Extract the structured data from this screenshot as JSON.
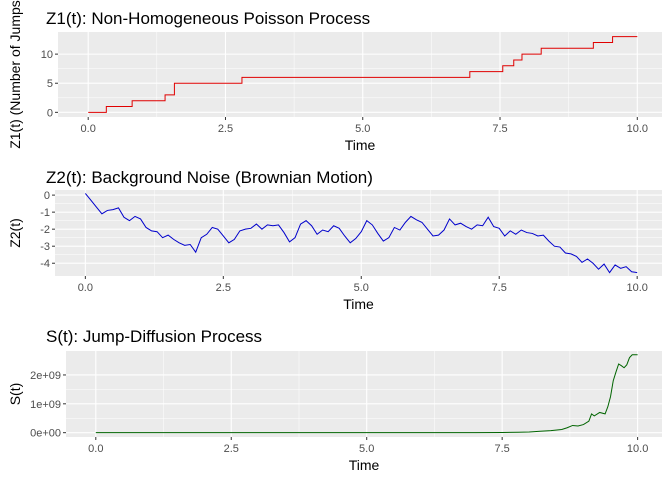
{
  "chart_data": [
    {
      "type": "line",
      "step": true,
      "title": "Z1(t): Non-Homogeneous Poisson Process",
      "xlabel": "Time",
      "ylabel": "Z1(t) (Number of Jumps",
      "xlim": [
        -0.55,
        10.45
      ],
      "ylim": [
        -0.8,
        13.8
      ],
      "x_ticks": [
        0,
        2.5,
        5,
        7.5,
        10
      ],
      "x_tick_labels": [
        "0.0",
        "2.5",
        "5.0",
        "7.5",
        "10.0"
      ],
      "y_ticks": [
        0,
        5,
        10
      ],
      "y_tick_labels": [
        "0",
        "5",
        "10"
      ],
      "grid": true,
      "color": "#e00000",
      "series": [
        {
          "x": [
            0,
            0.33,
            0.8,
            1.4,
            1.57,
            2.8,
            6.95,
            7.55,
            7.75,
            7.9,
            8.25,
            8.7,
            9.2,
            9.55,
            10.0
          ],
          "values": [
            0,
            1,
            2,
            3,
            5,
            6,
            7,
            8,
            9,
            10,
            11,
            11,
            12,
            13,
            13
          ]
        }
      ]
    },
    {
      "type": "line",
      "title": "Z2(t): Background Noise (Brownian Motion)",
      "xlabel": "Time",
      "ylabel": "Z2(t)",
      "xlim": [
        -0.55,
        10.45
      ],
      "ylim": [
        -4.75,
        0.3
      ],
      "x_ticks": [
        0,
        2.5,
        5,
        7.5,
        10
      ],
      "x_tick_labels": [
        "0.0",
        "2.5",
        "5.0",
        "7.5",
        "10.0"
      ],
      "y_ticks": [
        0,
        -1,
        -2,
        -3,
        -4
      ],
      "y_tick_labels": [
        "0",
        "-1",
        "-2",
        "-3",
        "-4"
      ],
      "grid": true,
      "color": "#0000cc",
      "series": [
        {
          "x": [
            0,
            0.1,
            0.2,
            0.3,
            0.4,
            0.5,
            0.6,
            0.7,
            0.8,
            0.9,
            1.0,
            1.1,
            1.2,
            1.3,
            1.4,
            1.5,
            1.6,
            1.7,
            1.8,
            1.9,
            2.0,
            2.1,
            2.2,
            2.3,
            2.4,
            2.5,
            2.6,
            2.7,
            2.8,
            2.9,
            3.0,
            3.1,
            3.2,
            3.3,
            3.4,
            3.5,
            3.6,
            3.7,
            3.8,
            3.9,
            4.0,
            4.1,
            4.2,
            4.3,
            4.4,
            4.5,
            4.6,
            4.7,
            4.8,
            4.9,
            5.0,
            5.1,
            5.2,
            5.3,
            5.4,
            5.5,
            5.6,
            5.7,
            5.8,
            5.9,
            6.0,
            6.1,
            6.2,
            6.3,
            6.4,
            6.5,
            6.6,
            6.7,
            6.8,
            6.9,
            7.0,
            7.1,
            7.2,
            7.3,
            7.4,
            7.5,
            7.6,
            7.7,
            7.8,
            7.9,
            8.0,
            8.1,
            8.2,
            8.3,
            8.4,
            8.5,
            8.6,
            8.7,
            8.8,
            8.9,
            9.0,
            9.1,
            9.2,
            9.3,
            9.4,
            9.5,
            9.6,
            9.7,
            9.8,
            9.9,
            10.0
          ],
          "values": [
            0.1,
            -0.3,
            -0.7,
            -1.1,
            -0.9,
            -0.85,
            -0.75,
            -1.3,
            -1.5,
            -1.25,
            -1.4,
            -1.9,
            -2.1,
            -2.15,
            -2.5,
            -2.35,
            -2.6,
            -2.8,
            -2.95,
            -2.9,
            -3.35,
            -2.5,
            -2.3,
            -1.9,
            -2.0,
            -2.4,
            -2.8,
            -2.6,
            -2.1,
            -2.0,
            -1.95,
            -1.7,
            -2.0,
            -1.75,
            -1.8,
            -1.75,
            -2.2,
            -2.75,
            -2.5,
            -1.7,
            -1.5,
            -1.8,
            -2.3,
            -2.05,
            -2.15,
            -1.8,
            -1.95,
            -2.4,
            -2.8,
            -2.55,
            -2.15,
            -1.5,
            -1.75,
            -2.25,
            -2.7,
            -2.5,
            -1.9,
            -2.05,
            -1.6,
            -1.25,
            -1.45,
            -1.6,
            -2.0,
            -2.4,
            -2.35,
            -2.05,
            -1.4,
            -1.75,
            -1.65,
            -1.85,
            -2.0,
            -1.75,
            -1.8,
            -1.3,
            -1.85,
            -1.95,
            -2.4,
            -2.1,
            -2.3,
            -2.05,
            -2.2,
            -2.25,
            -2.4,
            -2.35,
            -2.7,
            -3.0,
            -3.05,
            -3.4,
            -3.45,
            -3.6,
            -3.95,
            -3.75,
            -4.0,
            -4.35,
            -4.05,
            -4.55,
            -4.1,
            -4.3,
            -4.2,
            -4.5,
            -4.55
          ]
        }
      ]
    },
    {
      "type": "line",
      "title": "S(t): Jump-Diffusion Process",
      "xlabel": "Time",
      "ylabel": "S(t)",
      "xlim": [
        -0.55,
        10.45
      ],
      "ylim": [
        -150000000,
        2830000000
      ],
      "x_ticks": [
        0,
        2.5,
        5,
        7.5,
        10
      ],
      "x_tick_labels": [
        "0.0",
        "2.5",
        "5.0",
        "7.5",
        "10.0"
      ],
      "y_ticks": [
        0,
        1000000000,
        2000000000
      ],
      "y_tick_labels": [
        "0e+00",
        "1e+09",
        "2e+09"
      ],
      "grid": true,
      "color": "#006400",
      "series": [
        {
          "x": [
            0,
            7.0,
            7.5,
            7.8,
            8.0,
            8.2,
            8.4,
            8.6,
            8.7,
            8.8,
            8.9,
            9.0,
            9.1,
            9.15,
            9.2,
            9.3,
            9.4,
            9.45,
            9.5,
            9.55,
            9.6,
            9.65,
            9.7,
            9.75,
            9.8,
            9.85,
            9.9,
            10.0
          ],
          "values": [
            0,
            2000000,
            8000000,
            15000000,
            25000000,
            50000000,
            70000000,
            110000000,
            170000000,
            250000000,
            230000000,
            280000000,
            400000000,
            650000000,
            580000000,
            700000000,
            650000000,
            900000000,
            1250000000,
            1800000000,
            2100000000,
            2380000000,
            2320000000,
            2250000000,
            2350000000,
            2600000000,
            2700000000,
            2700000000
          ]
        }
      ]
    }
  ]
}
